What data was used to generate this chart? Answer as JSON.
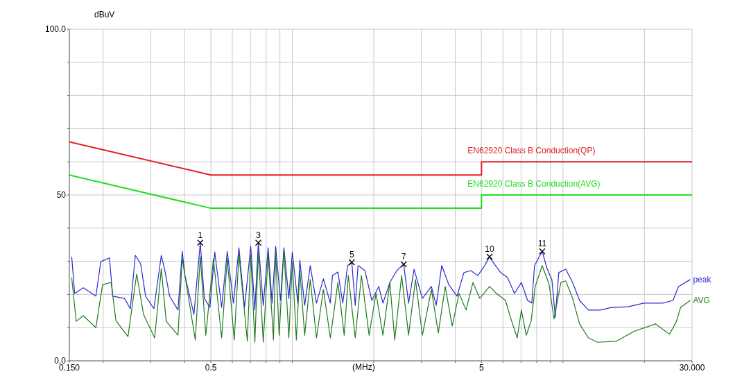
{
  "chart_data": {
    "type": "line",
    "xlabel": "(MHz)",
    "ylabel": "dBuV",
    "log": "x",
    "grid": true,
    "xlim": [
      0.15,
      30
    ],
    "xticks": [
      {
        "value": 0.15,
        "label": "0.150"
      },
      {
        "value": 0.2,
        "label": null
      },
      {
        "value": 0.3,
        "label": null
      },
      {
        "value": 0.4,
        "label": null
      },
      0.5,
      {
        "value": 0.6,
        "label": null
      },
      {
        "value": 0.7,
        "label": null
      },
      {
        "value": 0.8,
        "label": null
      },
      {
        "value": 0.9,
        "label": null
      },
      {
        "value": 1,
        "label": null
      },
      {
        "value": 2,
        "label": null
      },
      {
        "value": 3,
        "label": null
      },
      {
        "value": 4,
        "label": null
      },
      5,
      {
        "value": 6,
        "label": null
      },
      {
        "value": 7,
        "label": null
      },
      {
        "value": 8,
        "label": null
      },
      {
        "value": 9,
        "label": null
      },
      {
        "value": 10,
        "label": null
      },
      {
        "value": 20,
        "label": null
      },
      {
        "value": 30,
        "label": "30.000"
      }
    ],
    "ylim": [
      0,
      100
    ],
    "yticks": [
      {
        "value": 0,
        "label": "0.0"
      },
      {
        "value": 10,
        "label": null
      },
      {
        "value": 20,
        "label": null
      },
      {
        "value": 30,
        "label": null
      },
      {
        "value": 40,
        "label": null
      },
      50,
      {
        "value": 60,
        "label": null
      },
      {
        "value": 70,
        "label": null
      },
      {
        "value": 80,
        "label": null
      },
      {
        "value": 90,
        "label": null
      },
      {
        "value": 100,
        "label": "100.0"
      }
    ],
    "series": [
      {
        "name": "EN62920 Class B  Conduction(QP)",
        "color": "#e02020",
        "x": [
          0.15,
          0.5,
          5,
          5,
          30
        ],
        "values": [
          66,
          56,
          56,
          60,
          60
        ]
      },
      {
        "name": "EN62920 Class B  Conduction(AVG)",
        "color": "#22dd22",
        "x": [
          0.15,
          0.5,
          5,
          5,
          30
        ],
        "values": [
          56,
          46,
          46,
          50,
          50
        ]
      },
      {
        "name": "peak",
        "color": "#2a2ad0",
        "x": [
          0.153,
          0.157,
          0.169,
          0.188,
          0.196,
          0.211,
          0.217,
          0.24,
          0.252,
          0.263,
          0.275,
          0.287,
          0.308,
          0.328,
          0.338,
          0.352,
          0.378,
          0.392,
          0.401,
          0.433,
          0.457,
          0.473,
          0.496,
          0.517,
          0.548,
          0.575,
          0.606,
          0.635,
          0.666,
          0.702,
          0.727,
          0.749,
          0.781,
          0.814,
          0.842,
          0.868,
          0.904,
          0.931,
          0.971,
          1.0,
          1.048,
          1.066,
          1.111,
          1.165,
          1.228,
          1.303,
          1.382,
          1.407,
          1.474,
          1.536,
          1.601,
          1.659,
          1.708,
          1.749,
          1.855,
          1.967,
          2.087,
          2.162,
          2.293,
          2.432,
          2.58,
          2.689,
          2.818,
          3.025,
          3.265,
          3.402,
          3.566,
          3.784,
          4.061,
          4.307,
          4.568,
          4.846,
          5.14,
          5.356,
          5.451,
          5.885,
          6.242,
          6.621,
          7.022,
          7.404,
          7.67,
          7.854,
          8.382,
          8.734,
          9.101,
          9.371,
          9.652,
          10.24,
          10.86,
          11.52,
          12.43,
          13.75,
          15.1,
          17.39,
          19.92,
          23.35,
          25.51,
          26.74,
          29.55
        ],
        "values": [
          31.4,
          20.3,
          22,
          19.5,
          29.9,
          31,
          19.5,
          18.8,
          15.7,
          31.8,
          29.3,
          19.5,
          15.7,
          31.8,
          27.2,
          19.5,
          15.3,
          33,
          25.7,
          14,
          35.6,
          18.8,
          16.1,
          32.8,
          16.1,
          33,
          17.4,
          34.1,
          16.1,
          34.5,
          15.3,
          35.6,
          16.7,
          34.1,
          17.4,
          34.5,
          18.2,
          34.1,
          18.8,
          32.8,
          17.4,
          30.3,
          16.7,
          28.7,
          17.4,
          24.7,
          17.4,
          25.7,
          26.8,
          17.4,
          28.7,
          29.7,
          16.7,
          28.7,
          27.2,
          18.2,
          22.4,
          17.4,
          23.6,
          27.2,
          29.1,
          17.4,
          27.6,
          18.8,
          22.4,
          16.7,
          28.7,
          23,
          19.5,
          26.6,
          27.2,
          25.7,
          28.7,
          31.4,
          30.3,
          26.6,
          25.1,
          20.3,
          23.6,
          18.2,
          17.4,
          28.7,
          33,
          27.8,
          24.5,
          13.2,
          26.6,
          27.6,
          23.6,
          18.2,
          15.3,
          15.3,
          16.1,
          16.3,
          17.4,
          17.4,
          18.2,
          22.4,
          24.5
        ]
      },
      {
        "name": "AVG",
        "color": "#1f7a1f",
        "x": [
          0.153,
          0.159,
          0.169,
          0.188,
          0.199,
          0.214,
          0.223,
          0.247,
          0.266,
          0.282,
          0.31,
          0.328,
          0.342,
          0.378,
          0.392,
          0.438,
          0.457,
          0.479,
          0.511,
          0.548,
          0.575,
          0.61,
          0.635,
          0.682,
          0.702,
          0.727,
          0.749,
          0.781,
          0.814,
          0.852,
          0.868,
          0.894,
          0.931,
          0.971,
          1.0,
          1.035,
          1.066,
          1.111,
          1.165,
          1.228,
          1.303,
          1.382,
          1.474,
          1.555,
          1.611,
          1.708,
          1.801,
          1.922,
          2.039,
          2.162,
          2.293,
          2.39,
          2.535,
          2.689,
          2.852,
          3.025,
          3.265,
          3.463,
          3.673,
          3.897,
          4.133,
          4.384,
          4.65,
          4.932,
          5.356,
          5.68,
          6.133,
          6.391,
          6.778,
          7.022,
          7.318,
          7.625,
          7.9,
          8.382,
          8.89,
          9.264,
          9.824,
          10.24,
          10.86,
          11.52,
          12.43,
          13.43,
          15.74,
          18.45,
          22.01,
          24.77,
          26.27,
          27.22,
          29.55
        ],
        "values": [
          25.1,
          11.9,
          13.6,
          10,
          23,
          23.6,
          12.1,
          7.3,
          26.2,
          14,
          6.9,
          27.8,
          11.9,
          7.7,
          30.8,
          6.3,
          31.4,
          7.7,
          30.8,
          6.9,
          30.8,
          6.3,
          32,
          5.9,
          32,
          5.6,
          32.8,
          5.6,
          32,
          6.3,
          32.8,
          7.7,
          33.5,
          6.9,
          29.9,
          6.3,
          27.2,
          7.7,
          24.5,
          6.9,
          21.5,
          6.9,
          23.6,
          7.7,
          25.7,
          6.9,
          25.7,
          7.7,
          20.3,
          7.7,
          23.6,
          6.3,
          25.7,
          7.7,
          24.5,
          7.7,
          21.5,
          8.4,
          22.4,
          10.5,
          20.3,
          15.3,
          23.6,
          18.8,
          22.4,
          20.3,
          18.2,
          13.2,
          6.9,
          15.3,
          7.7,
          11.9,
          22.4,
          28.7,
          23,
          12.6,
          23.6,
          24.1,
          18.8,
          11.1,
          6.9,
          5.6,
          5.9,
          9,
          11.1,
          8,
          11.9,
          16.1,
          18.2
        ]
      }
    ],
    "annotations": [
      {
        "text": "1",
        "x": 0.457,
        "y": 35.6
      },
      {
        "text": "3",
        "x": 0.749,
        "y": 35.6
      },
      {
        "text": "5",
        "x": 1.659,
        "y": 29.7
      },
      {
        "text": "7",
        "x": 2.58,
        "y": 29.1
      },
      {
        "text": "10",
        "x": 5.356,
        "y": 31.4
      },
      {
        "text": "11",
        "x": 8.382,
        "y": 33
      }
    ]
  }
}
